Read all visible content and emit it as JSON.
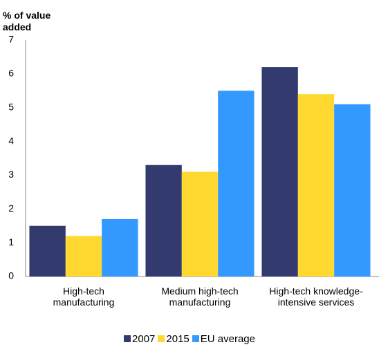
{
  "chart_data": {
    "type": "bar",
    "y_axis_label": "% of value added",
    "categories": [
      "High-tech manufacturing",
      "Medium high-tech manufacturing",
      "High-tech knowledge-intensive services"
    ],
    "series": [
      {
        "name": "2007",
        "color": "#333a6e",
        "values": [
          1.5,
          3.3,
          6.2
        ]
      },
      {
        "name": "2015",
        "color": "#ffd92f",
        "values": [
          1.2,
          3.1,
          5.4
        ]
      },
      {
        "name": "EU average",
        "color": "#3399ff",
        "values": [
          1.7,
          5.5,
          5.1
        ]
      }
    ],
    "ylim": [
      0,
      7
    ],
    "yticks": [
      0,
      1,
      2,
      3,
      4,
      5,
      6,
      7
    ],
    "grid": false,
    "legend": "bottom"
  }
}
